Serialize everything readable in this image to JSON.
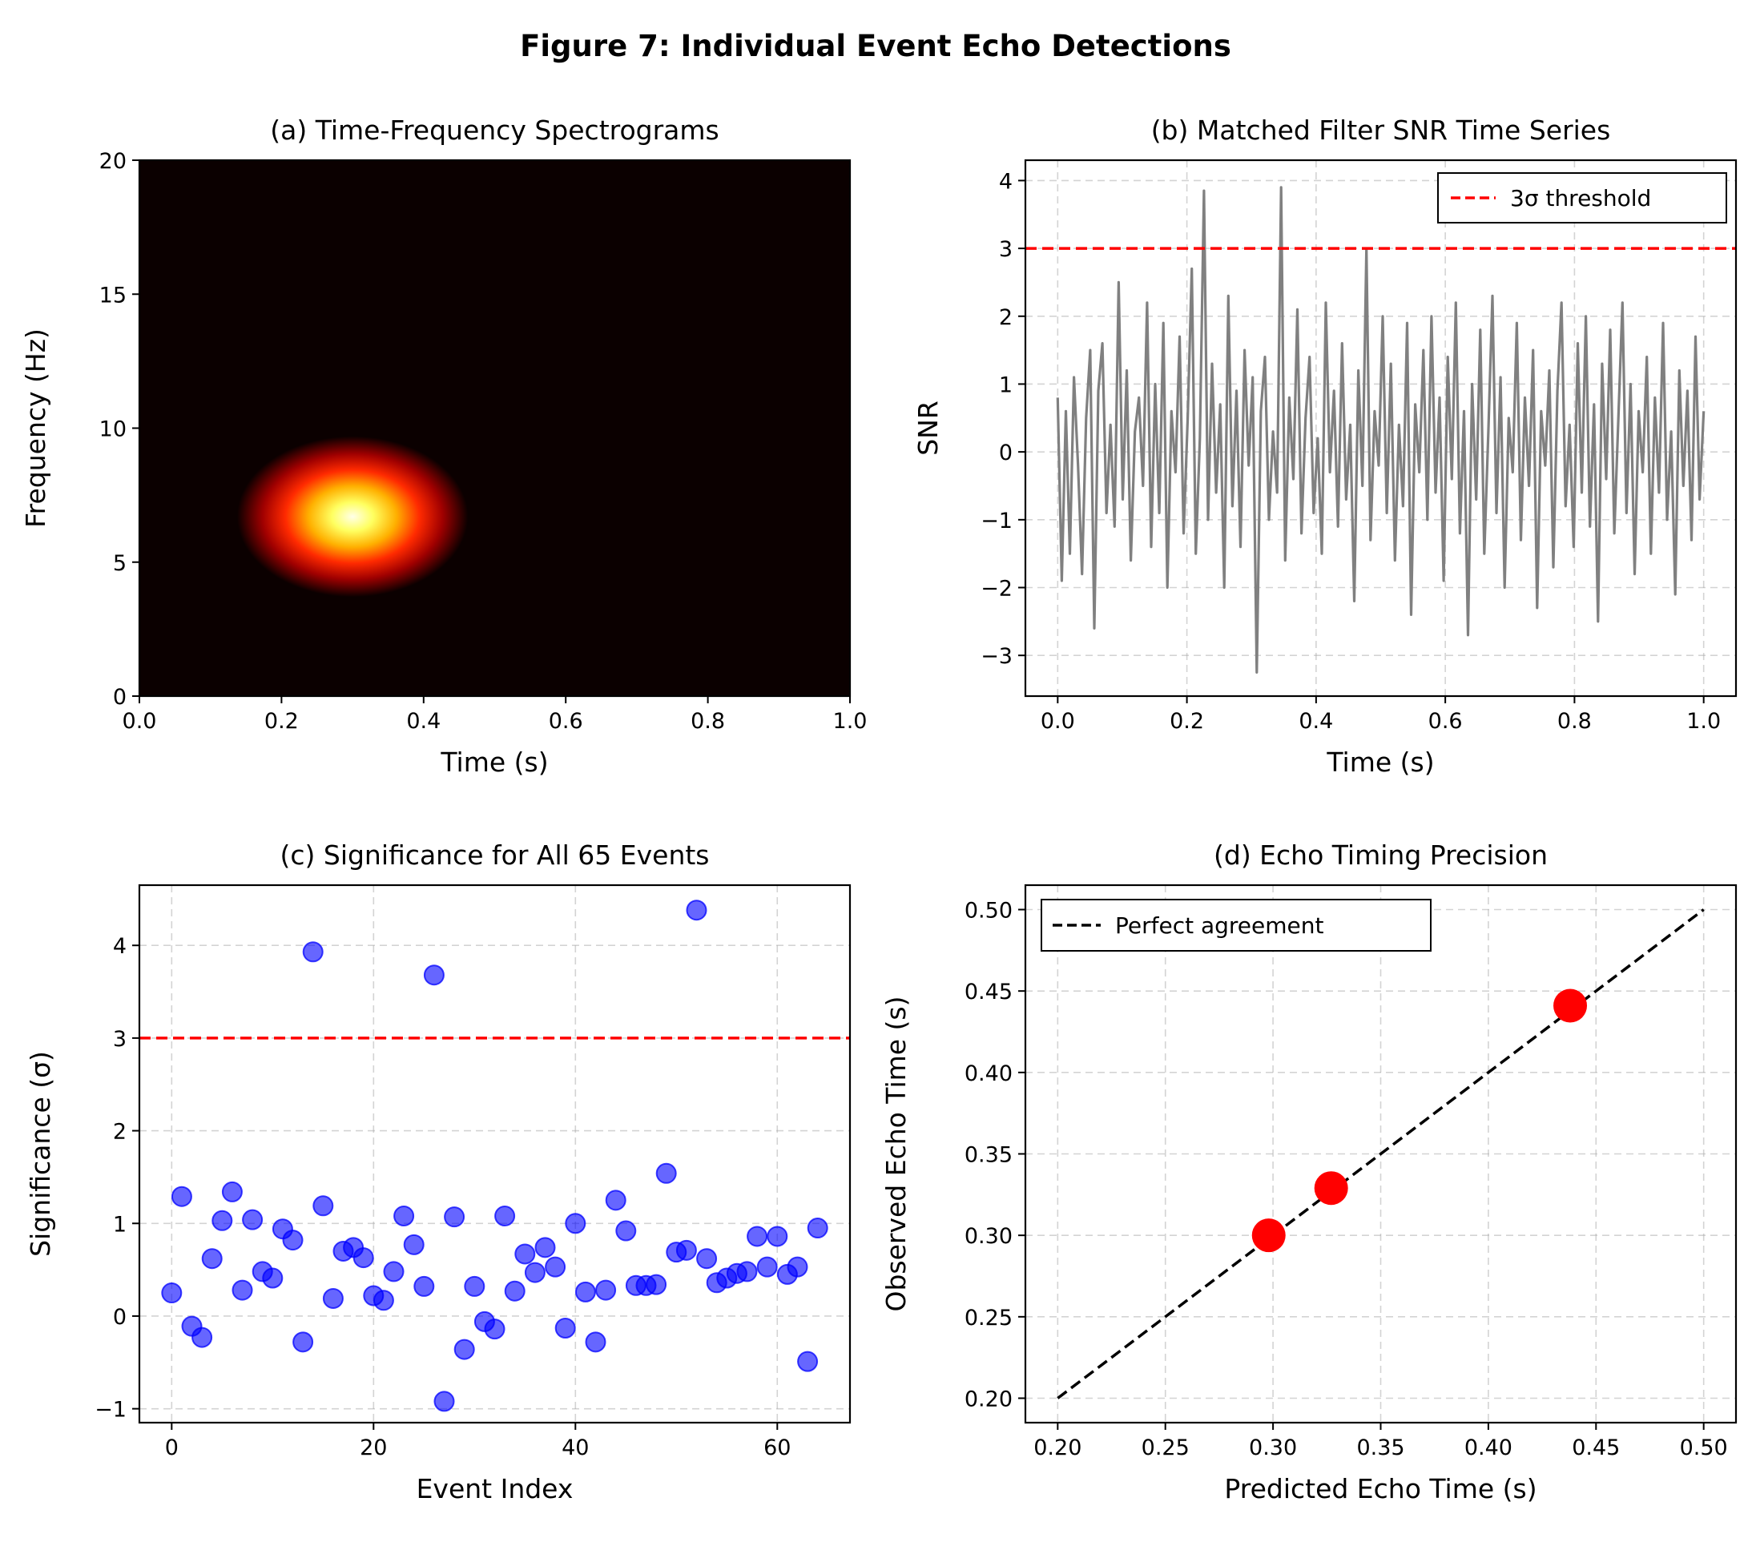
{
  "figure": {
    "title": "Figure 7: Individual Event Echo Detections"
  },
  "chart_data": [
    {
      "id": "a",
      "type": "heatmap",
      "title": "(a) Time-Frequency Spectrograms",
      "xlabel": "Time (s)",
      "ylabel": "Frequency (Hz)",
      "xlim": [
        0,
        1
      ],
      "ylim": [
        0,
        20
      ],
      "xticks": [
        0.0,
        0.2,
        0.4,
        0.6,
        0.8,
        1.0
      ],
      "xtick_labels": [
        "0.0",
        "0.2",
        "0.4",
        "0.6",
        "0.8",
        "1.0"
      ],
      "yticks": [
        0,
        5,
        10,
        15,
        20
      ],
      "ytick_labels": [
        "0",
        "5",
        "10",
        "15",
        "20"
      ],
      "grid": false,
      "colormap": "hot",
      "blob": {
        "center_time": 0.3,
        "center_freq": 6.7,
        "sigma_time": 0.065,
        "sigma_freq": 1.2,
        "peak": 1.0
      }
    },
    {
      "id": "b",
      "type": "line",
      "title": "(b) Matched Filter SNR Time Series",
      "xlabel": "Time (s)",
      "ylabel": "SNR",
      "xlim": [
        -0.05,
        1.05
      ],
      "ylim": [
        -3.6,
        4.3
      ],
      "xticks": [
        0.0,
        0.2,
        0.4,
        0.6,
        0.8,
        1.0
      ],
      "xtick_labels": [
        "0.0",
        "0.2",
        "0.4",
        "0.6",
        "0.8",
        "1.0"
      ],
      "yticks": [
        -3,
        -2,
        -1,
        0,
        1,
        2,
        3,
        4
      ],
      "ytick_labels": [
        "−3",
        "−2",
        "−1",
        "0",
        "1",
        "2",
        "3",
        "4"
      ],
      "grid": true,
      "legend_position": "upper-right",
      "line_color": "#808080",
      "series_x_range": [
        0,
        1
      ],
      "series_values": [
        0.8,
        -1.9,
        0.6,
        -1.5,
        1.1,
        -0.2,
        -1.8,
        0.5,
        1.5,
        -2.6,
        0.9,
        1.6,
        -0.9,
        0.4,
        -1.1,
        2.5,
        -0.7,
        1.2,
        -1.6,
        0.3,
        0.8,
        -0.5,
        2.2,
        -1.4,
        1.0,
        -0.9,
        1.9,
        -2.0,
        0.6,
        -0.3,
        1.7,
        -1.2,
        0.5,
        2.7,
        -1.5,
        0.2,
        3.85,
        -1.0,
        1.3,
        -0.6,
        0.7,
        -2.0,
        2.3,
        -0.8,
        0.9,
        -1.4,
        1.5,
        -0.2,
        1.1,
        -3.25,
        0.6,
        1.4,
        -1.0,
        0.3,
        -0.6,
        3.9,
        -1.6,
        0.8,
        -0.4,
        2.1,
        -1.2,
        0.5,
        1.4,
        -0.9,
        0.2,
        -1.5,
        2.2,
        -0.3,
        0.9,
        -1.1,
        1.6,
        -0.7,
        0.4,
        -2.2,
        1.2,
        -0.5,
        3.0,
        -1.3,
        0.6,
        -0.2,
        2.0,
        -0.9,
        1.3,
        -1.6,
        0.4,
        -0.8,
        1.9,
        -2.4,
        0.7,
        -0.3,
        1.5,
        -1.0,
        2.0,
        -0.6,
        0.8,
        -1.9,
        1.4,
        -0.4,
        2.2,
        -1.2,
        0.6,
        -2.7,
        1.0,
        -0.7,
        1.8,
        -1.5,
        0.3,
        2.3,
        -0.9,
        1.1,
        -2.0,
        0.5,
        -0.3,
        1.9,
        -1.3,
        0.8,
        -0.5,
        1.5,
        -2.3,
        0.6,
        -0.2,
        1.2,
        -1.7,
        0.9,
        2.2,
        -0.8,
        0.4,
        -1.4,
        1.6,
        -0.6,
        2.0,
        -1.1,
        0.7,
        -2.5,
        1.3,
        -0.4,
        1.8,
        -1.2,
        0.5,
        2.2,
        -0.9,
        1.0,
        -1.8,
        0.6,
        -0.3,
        1.4,
        -1.5,
        0.8,
        -0.6,
        1.9,
        -1.0,
        0.3,
        -2.1,
        1.2,
        -0.5,
        0.9,
        -1.3,
        1.7,
        -0.7,
        0.6
      ]
    },
    {
      "id": "c",
      "type": "scatter",
      "title": "(c) Significance for All 65 Events",
      "xlabel": "Event Index",
      "ylabel": "Significance (σ)",
      "xlim": [
        -3.2,
        67.2
      ],
      "ylim": [
        -1.15,
        4.65
      ],
      "xticks": [
        0,
        20,
        40,
        60
      ],
      "xtick_labels": [
        "0",
        "20",
        "40",
        "60"
      ],
      "yticks": [
        -1,
        0,
        1,
        2,
        3,
        4
      ],
      "ytick_labels": [
        "−1",
        "0",
        "1",
        "2",
        "3",
        "4"
      ],
      "grid": true,
      "threshold": 3.0,
      "point_color": "#0000ff",
      "x": [
        0,
        1,
        2,
        3,
        4,
        5,
        6,
        7,
        8,
        9,
        10,
        11,
        12,
        13,
        14,
        15,
        16,
        17,
        18,
        19,
        20,
        21,
        22,
        23,
        24,
        25,
        26,
        27,
        28,
        29,
        30,
        31,
        32,
        33,
        34,
        35,
        36,
        37,
        38,
        39,
        40,
        41,
        42,
        43,
        44,
        45,
        46,
        47,
        48,
        49,
        50,
        51,
        52,
        53,
        54,
        55,
        56,
        57,
        58,
        59,
        60,
        61,
        62,
        63,
        64
      ],
      "y": [
        0.25,
        1.29,
        -0.11,
        -0.23,
        0.62,
        1.03,
        1.34,
        0.28,
        1.04,
        0.48,
        0.41,
        0.94,
        0.82,
        -0.28,
        3.93,
        1.19,
        0.19,
        0.7,
        0.74,
        0.63,
        0.22,
        0.17,
        0.48,
        1.08,
        0.77,
        0.32,
        3.68,
        -0.92,
        1.07,
        -0.36,
        0.32,
        -0.06,
        -0.14,
        1.08,
        0.27,
        0.67,
        0.47,
        0.74,
        0.53,
        -0.13,
        1.0,
        0.26,
        -0.28,
        0.28,
        1.25,
        0.92,
        0.33,
        0.33,
        0.34,
        1.54,
        0.69,
        0.71,
        4.38,
        0.62,
        0.36,
        0.41,
        0.46,
        0.48,
        0.86,
        0.53,
        0.86,
        0.45,
        0.53,
        -0.49,
        0.95
      ]
    },
    {
      "id": "d",
      "type": "scatter",
      "title": "(d) Echo Timing Precision",
      "xlabel": "Predicted Echo Time (s)",
      "ylabel": "Observed Echo Time (s)",
      "xlim": [
        0.185,
        0.515
      ],
      "ylim": [
        0.185,
        0.515
      ],
      "xticks": [
        0.2,
        0.25,
        0.3,
        0.35,
        0.4,
        0.45,
        0.5
      ],
      "xtick_labels": [
        "0.20",
        "0.25",
        "0.30",
        "0.35",
        "0.40",
        "0.45",
        "0.50"
      ],
      "yticks": [
        0.2,
        0.25,
        0.3,
        0.35,
        0.4,
        0.45,
        0.5
      ],
      "ytick_labels": [
        "0.20",
        "0.25",
        "0.30",
        "0.35",
        "0.40",
        "0.45",
        "0.50"
      ],
      "grid": true,
      "legend_position": "upper-left",
      "reference_line": {
        "x": [
          0.2,
          0.5
        ],
        "y": [
          0.2,
          0.5
        ]
      },
      "point_color": "#ff0000",
      "x": [
        0.298,
        0.327,
        0.438
      ],
      "y": [
        0.3,
        0.329,
        0.441
      ]
    }
  ],
  "legends": {
    "b": [
      {
        "label": "3σ threshold",
        "color": "#ff0000",
        "dash": true
      }
    ],
    "d": [
      {
        "label": "Perfect agreement",
        "color": "#000000",
        "dash": true
      }
    ]
  }
}
